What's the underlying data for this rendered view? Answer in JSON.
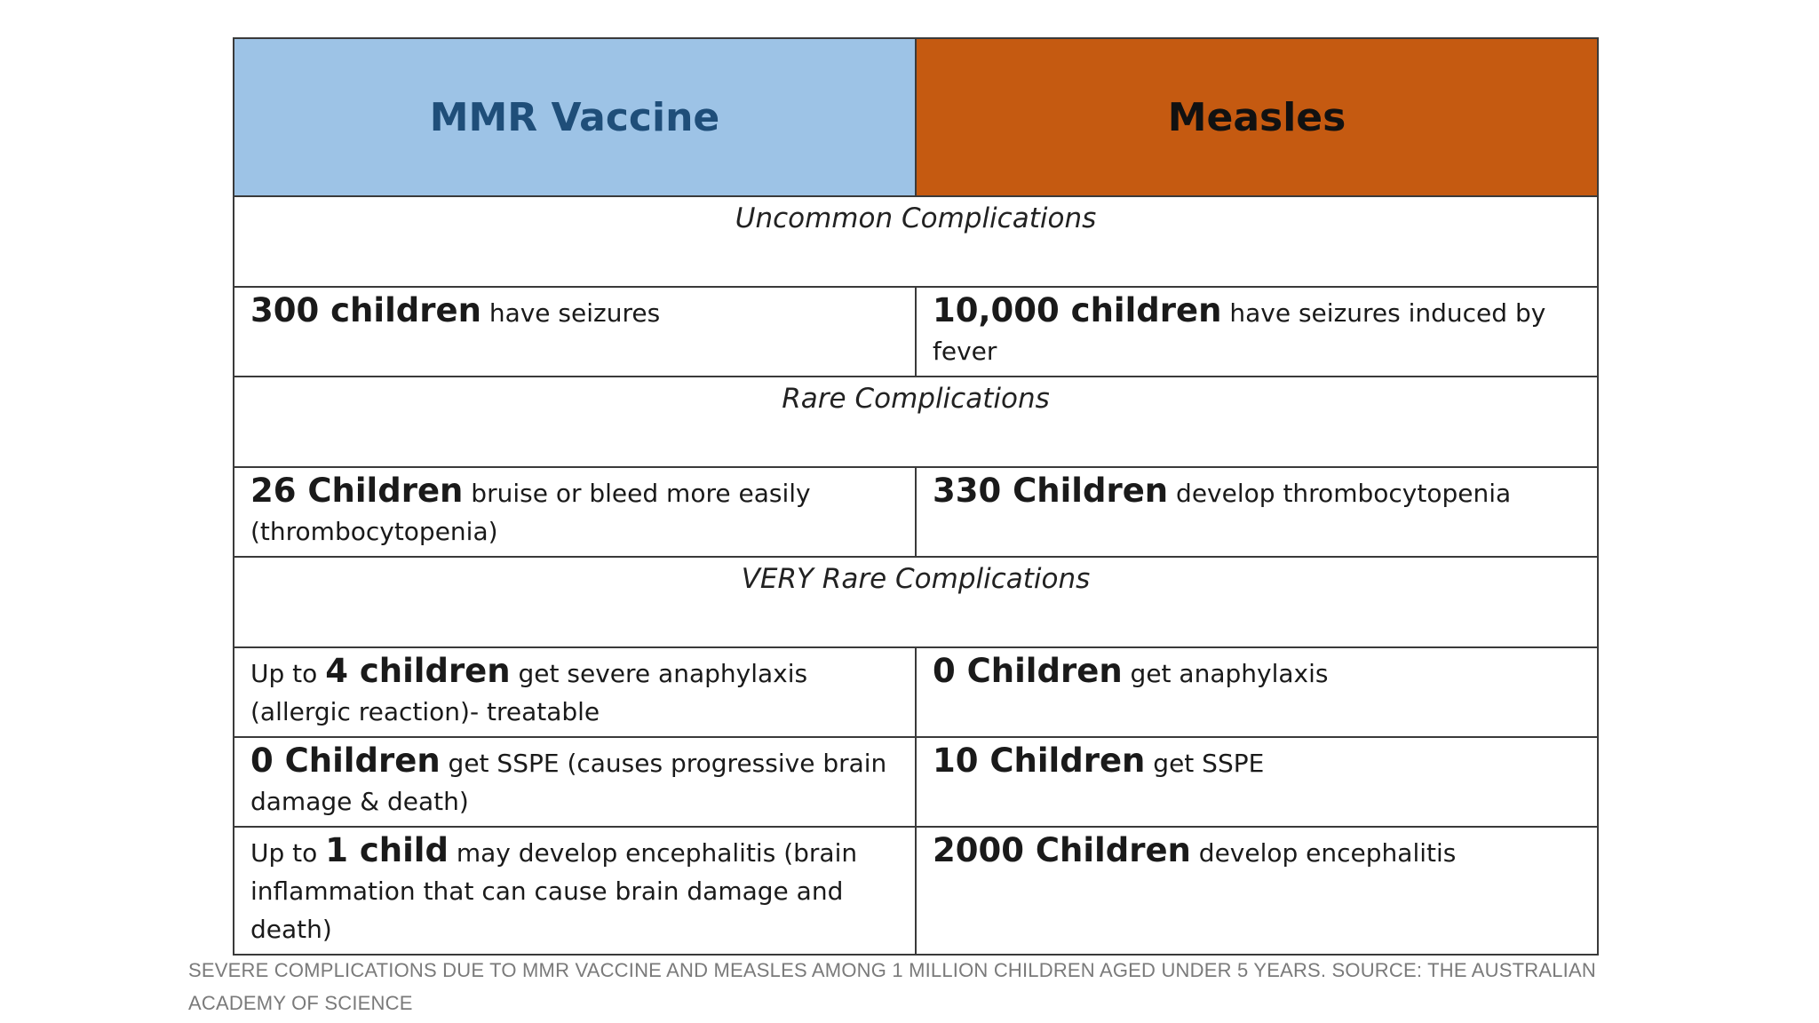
{
  "table": {
    "headers": {
      "left": "MMR Vaccine",
      "right": "Measles"
    },
    "colors": {
      "vaccine_header_bg": "#9dc3e6",
      "vaccine_header_text": "#1f4e79",
      "measles_header_bg": "#c55a11"
    },
    "sections": {
      "uncommon": "Uncommon Complications",
      "rare": "Rare Complications",
      "very_rare": "VERY Rare Complications"
    },
    "rows": {
      "seizures": {
        "left_strong": "300 children",
        "left_text": " have seizures",
        "right_strong": "10,000 children",
        "right_text": " have seizures induced by fever"
      },
      "thrombocytopenia": {
        "left_strong": "26 Children",
        "left_text": " bruise or bleed more easily (thrombocytopenia)",
        "right_strong": "330 Children",
        "right_text": " develop thrombocytopenia"
      },
      "anaphylaxis": {
        "left_prefix": "Up to ",
        "left_strong": "4 children",
        "left_text": " get severe anaphylaxis (allergic reaction)- treatable",
        "right_strong": "0 Children",
        "right_text": " get anaphylaxis"
      },
      "sspe": {
        "left_strong": "0 Children",
        "left_text": " get SSPE (causes progressive brain damage & death)",
        "right_strong": "10 Children",
        "right_text": " get SSPE"
      },
      "encephalitis": {
        "left_prefix": "Up to ",
        "left_strong": "1 child",
        "left_text": " may develop encephalitis (brain inflammation that can cause brain damage and death)",
        "right_strong": "2000 Children",
        "right_text": " develop encephalitis"
      }
    }
  },
  "caption": "SEVERE COMPLICATIONS DUE TO MMR VACCINE AND MEASLES AMONG 1 MILLION CHILDREN AGED UNDER 5 YEARS. SOURCE: THE AUSTRALIAN ACADEMY OF SCIENCE"
}
